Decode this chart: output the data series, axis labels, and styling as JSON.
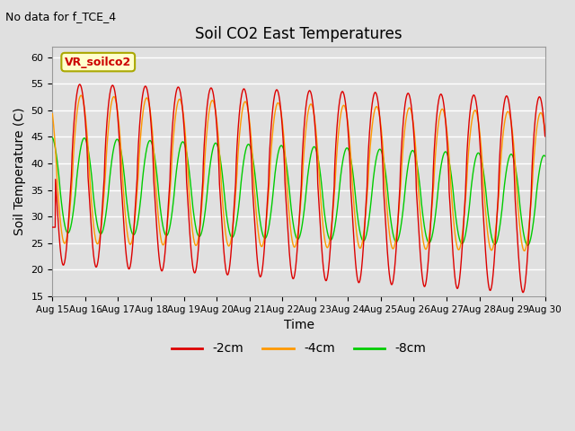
{
  "title": "Soil CO2 East Temperatures",
  "subtitle": "No data for f_TCE_4",
  "xlabel": "Time",
  "ylabel": "Soil Temperature (C)",
  "ylim": [
    15,
    62
  ],
  "yticks": [
    15,
    20,
    25,
    30,
    35,
    40,
    45,
    50,
    55,
    60
  ],
  "x_tick_labels": [
    "Aug 15",
    "Aug 16",
    "Aug 17",
    "Aug 18",
    "Aug 19",
    "Aug 20",
    "Aug 21",
    "Aug 22",
    "Aug 23",
    "Aug 24",
    "Aug 25",
    "Aug 26",
    "Aug 27",
    "Aug 28",
    "Aug 29",
    "Aug 30"
  ],
  "legend_label": "VR_soilco2",
  "line_colors": {
    "2cm": "#dd0000",
    "4cm": "#ff9900",
    "8cm": "#00cc00"
  },
  "legend_labels": [
    "-2cm",
    "-4cm",
    "-8cm"
  ],
  "bg_color": "#e0e0e0",
  "plot_bg_color": "#e0e0e0",
  "grid_color": "#ffffff",
  "figsize": [
    6.4,
    4.8
  ],
  "dpi": 100
}
